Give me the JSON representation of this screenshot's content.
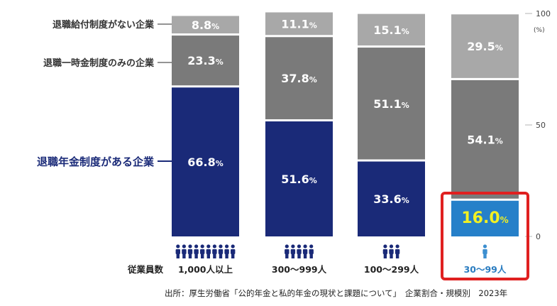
{
  "chart_data": {
    "type": "bar",
    "stacked": true,
    "categories": [
      "1,000人以上",
      "300〜999人",
      "100〜299人",
      "30〜99人"
    ],
    "x_axis_title": "従業員数",
    "series": [
      {
        "name": "退職年金制度がある企業",
        "values": [
          66.8,
          51.6,
          33.6,
          16.0
        ],
        "labels": [
          "66.8%",
          "51.6%",
          "33.6%",
          "16.0%"
        ]
      },
      {
        "name": "退職一時金制度のみの企業",
        "values": [
          23.3,
          37.8,
          51.1,
          54.1
        ],
        "labels": [
          "23.3%",
          "37.8%",
          "51.1%",
          "54.1%"
        ]
      },
      {
        "name": "退職給付制度がない企業",
        "values": [
          8.8,
          11.1,
          15.1,
          29.5
        ],
        "labels": [
          "8.8%",
          "11.1%",
          "15.1%",
          "29.5%"
        ]
      }
    ],
    "people_icon_counts": [
      10,
      5,
      3,
      1
    ],
    "highlighted_category": "30〜99人",
    "y_axis": {
      "ticks": [
        0,
        50,
        100
      ],
      "unit": "(%)",
      "ylim": [
        0,
        100
      ]
    },
    "colors": {
      "pension": "#1a2a78",
      "pension_highlight": "#2680c9",
      "lump_sum": "#7a7a7a",
      "none": "#a8a8a8",
      "highlight_border": "#e02020",
      "highlight_value": "#f2f022",
      "icon": "#1a2a78",
      "icon_highlight": "#3d8fd0",
      "highlight_label": "#2a7cc0"
    }
  },
  "caption": "出所：厚生労働省「公的年金と私的年金の現状と課題について」　企業割合・規模別　2023年"
}
